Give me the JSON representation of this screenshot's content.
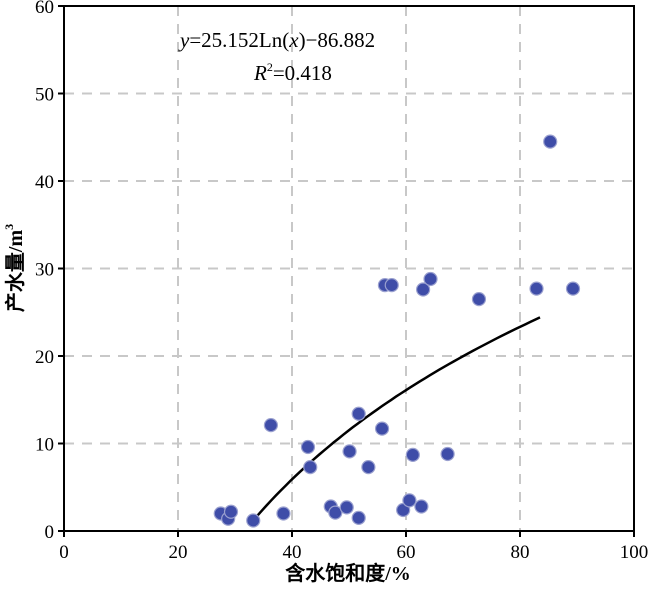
{
  "chart_data": {
    "type": "scatter",
    "title": "",
    "xlabel": "含水饱和度/%",
    "ylabel_main": "产水量/m",
    "ylabel_sup": "3",
    "xlim": [
      0,
      100
    ],
    "ylim": [
      0,
      60
    ],
    "xticks": [
      0,
      20,
      40,
      60,
      80,
      100
    ],
    "yticks": [
      0,
      10,
      20,
      30,
      40,
      50,
      60
    ],
    "grid": true,
    "grid_style": "dashed",
    "marker_color": "#3F4DA8",
    "line_color": "#000000",
    "points": [
      {
        "x": 27.5,
        "y": 2.0
      },
      {
        "x": 28.8,
        "y": 1.4
      },
      {
        "x": 29.3,
        "y": 2.2
      },
      {
        "x": 33.2,
        "y": 1.2
      },
      {
        "x": 36.3,
        "y": 12.1
      },
      {
        "x": 38.5,
        "y": 2.0
      },
      {
        "x": 42.8,
        "y": 9.6
      },
      {
        "x": 43.2,
        "y": 7.3
      },
      {
        "x": 46.8,
        "y": 2.8
      },
      {
        "x": 47.6,
        "y": 2.1
      },
      {
        "x": 49.6,
        "y": 2.7
      },
      {
        "x": 50.1,
        "y": 9.1
      },
      {
        "x": 51.7,
        "y": 1.5
      },
      {
        "x": 51.7,
        "y": 13.4
      },
      {
        "x": 53.4,
        "y": 7.3
      },
      {
        "x": 55.8,
        "y": 11.7
      },
      {
        "x": 56.3,
        "y": 28.1
      },
      {
        "x": 57.5,
        "y": 28.1
      },
      {
        "x": 59.5,
        "y": 2.4
      },
      {
        "x": 60.6,
        "y": 3.5
      },
      {
        "x": 61.2,
        "y": 8.7
      },
      {
        "x": 62.7,
        "y": 2.8
      },
      {
        "x": 63.0,
        "y": 27.6
      },
      {
        "x": 64.3,
        "y": 28.8
      },
      {
        "x": 67.3,
        "y": 8.8
      },
      {
        "x": 72.8,
        "y": 26.5
      },
      {
        "x": 82.9,
        "y": 27.7
      },
      {
        "x": 85.3,
        "y": 44.5
      },
      {
        "x": 89.3,
        "y": 27.7
      }
    ],
    "fit": {
      "a": 25.152,
      "b": -86.882,
      "x_range": [
        33,
        83.5
      ],
      "equation_y": "y",
      "equation_body": "=25.152Ln(",
      "equation_x": "x",
      "equation_tail": ")−86.882",
      "r2_label": "R",
      "r2_sup": "2",
      "r2_value": "=0.418"
    }
  }
}
